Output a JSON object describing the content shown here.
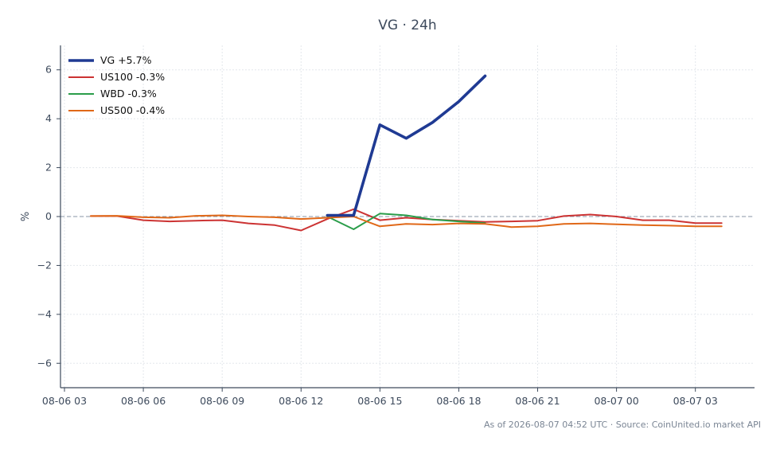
{
  "chart_data": {
    "type": "line",
    "title": "VG · 24h",
    "xlabel": "",
    "ylabel": "%",
    "ylim": [
      -7,
      7
    ],
    "yticks": [
      -6,
      -4,
      -2,
      0,
      2,
      4,
      6
    ],
    "ytick_labels": [
      "−6",
      "−4",
      "−2",
      "0",
      "2",
      "4",
      "6"
    ],
    "xlim": [
      "08-06 03:00",
      "08-07 05:15"
    ],
    "xticks": [
      "08-06 03",
      "08-06 06",
      "08-06 09",
      "08-06 12",
      "08-06 15",
      "08-06 18",
      "08-06 21",
      "08-07 00",
      "08-07 03"
    ],
    "grid": true,
    "zero_line": true,
    "legend_position": "top-left",
    "series": [
      {
        "name": "VG +5.7%",
        "color": "#1f3a93",
        "x": [
          "08-06 13:00",
          "08-06 14:00",
          "08-06 15:00",
          "08-06 16:00",
          "08-06 17:00",
          "08-06 18:00",
          "08-06 19:00"
        ],
        "values": [
          0.05,
          0.05,
          3.75,
          3.2,
          3.85,
          4.7,
          5.75
        ]
      },
      {
        "name": "US100 -0.3%",
        "color": "#cc3333",
        "x": [
          "08-06 04:00",
          "08-06 05:00",
          "08-06 06:00",
          "08-06 07:00",
          "08-06 08:00",
          "08-06 09:00",
          "08-06 10:00",
          "08-06 11:00",
          "08-06 12:00",
          "08-06 13:00",
          "08-06 14:00",
          "08-06 15:00",
          "08-06 16:00",
          "08-06 17:00",
          "08-06 18:00",
          "08-06 19:00",
          "08-06 20:00",
          "08-06 21:00",
          "08-06 22:00",
          "08-06 23:00",
          "08-07 00:00",
          "08-07 01:00",
          "08-07 02:00",
          "08-07 03:00",
          "08-07 04:00"
        ],
        "values": [
          0.02,
          0.02,
          -0.15,
          -0.2,
          -0.17,
          -0.15,
          -0.28,
          -0.35,
          -0.57,
          -0.1,
          0.3,
          -0.15,
          -0.05,
          -0.12,
          -0.17,
          -0.22,
          -0.2,
          -0.17,
          0.02,
          0.08,
          0.0,
          -0.15,
          -0.15,
          -0.27,
          -0.27
        ]
      },
      {
        "name": "WBD -0.3%",
        "color": "#2a9d4a",
        "x": [
          "08-06 13:00",
          "08-06 14:00",
          "08-06 15:00",
          "08-06 16:00",
          "08-06 17:00",
          "08-06 18:00",
          "08-06 19:00"
        ],
        "values": [
          0.0,
          -0.52,
          0.12,
          0.05,
          -0.12,
          -0.2,
          -0.27
        ]
      },
      {
        "name": "US500 -0.4%",
        "color": "#e06818",
        "x": [
          "08-06 04:00",
          "08-06 05:00",
          "08-06 06:00",
          "08-06 07:00",
          "08-06 08:00",
          "08-06 09:00",
          "08-06 10:00",
          "08-06 11:00",
          "08-06 12:00",
          "08-06 13:00",
          "08-06 14:00",
          "08-06 15:00",
          "08-06 16:00",
          "08-06 17:00",
          "08-06 18:00",
          "08-06 19:00",
          "08-06 20:00",
          "08-06 21:00",
          "08-06 22:00",
          "08-06 23:00",
          "08-07 00:00",
          "08-07 01:00",
          "08-07 02:00",
          "08-07 03:00",
          "08-07 04:00"
        ],
        "values": [
          0.02,
          0.03,
          -0.03,
          -0.05,
          0.03,
          0.05,
          0.0,
          -0.03,
          -0.1,
          -0.05,
          0.0,
          -0.4,
          -0.3,
          -0.33,
          -0.28,
          -0.3,
          -0.43,
          -0.4,
          -0.3,
          -0.28,
          -0.32,
          -0.35,
          -0.37,
          -0.4,
          -0.4
        ]
      }
    ]
  },
  "footer": {
    "text": "As of 2026-08-07 04:52 UTC · Source: CoinUnited.io market API"
  }
}
